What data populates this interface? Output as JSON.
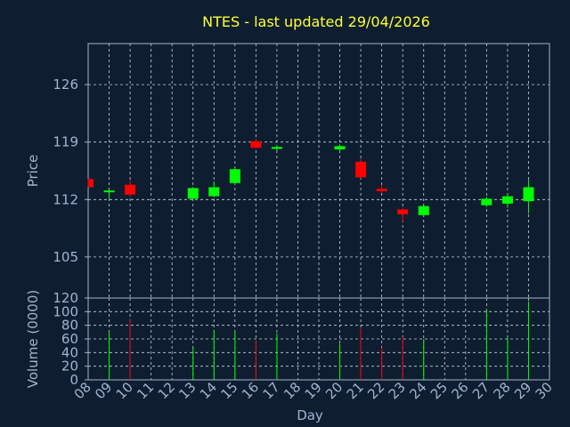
{
  "chart_data": {
    "type": "candlestick",
    "title": "NTES - last updated 29/04/2026",
    "xlabel": "Day",
    "price_panel": {
      "ylabel": "Price",
      "yticks": [
        105,
        112,
        119,
        126
      ],
      "ylim": [
        100,
        131
      ],
      "grid": true
    },
    "volume_panel": {
      "ylabel": "Volume (0000)",
      "yticks": [
        0,
        20,
        40,
        60,
        80,
        100,
        120
      ],
      "ylim": [
        0,
        120
      ],
      "grid": true
    },
    "x_tick_labels": [
      "08",
      "09",
      "10",
      "11",
      "12",
      "13",
      "14",
      "15",
      "16",
      "17",
      "18",
      "19",
      "20",
      "21",
      "22",
      "23",
      "24",
      "25",
      "26",
      "27",
      "28",
      "29",
      "30"
    ],
    "up_color": "#00ff00",
    "down_color": "#ff0000",
    "candles": [
      {
        "day": "08",
        "open": 114.5,
        "close": 113.5,
        "high": 114.5,
        "low": 113.5,
        "volume": 0
      },
      {
        "day": "09",
        "open": 112.9,
        "close": 113.1,
        "high": 113.2,
        "low": 112.0,
        "volume": 70
      },
      {
        "day": "10",
        "open": 113.8,
        "close": 112.6,
        "high": 114.4,
        "low": 112.4,
        "volume": 88
      },
      {
        "day": "13",
        "open": 112.1,
        "close": 113.4,
        "high": 113.5,
        "low": 112.0,
        "volume": 48
      },
      {
        "day": "14",
        "open": 112.4,
        "close": 113.5,
        "high": 114.2,
        "low": 112.3,
        "volume": 73
      },
      {
        "day": "15",
        "open": 114.0,
        "close": 115.7,
        "high": 115.9,
        "low": 113.9,
        "volume": 70
      },
      {
        "day": "16",
        "open": 119.1,
        "close": 118.3,
        "high": 119.4,
        "low": 118.2,
        "volume": 57
      },
      {
        "day": "17",
        "open": 118.2,
        "close": 118.4,
        "high": 118.6,
        "low": 118.0,
        "volume": 68
      },
      {
        "day": "20",
        "open": 118.1,
        "close": 118.5,
        "high": 118.7,
        "low": 117.9,
        "volume": 53
      },
      {
        "day": "21",
        "open": 116.6,
        "close": 114.7,
        "high": 116.9,
        "low": 114.6,
        "volume": 76
      },
      {
        "day": "22",
        "open": 113.3,
        "close": 113.0,
        "high": 113.8,
        "low": 112.8,
        "volume": 47
      },
      {
        "day": "23",
        "open": 110.8,
        "close": 110.2,
        "high": 111.0,
        "low": 109.3,
        "volume": 63
      },
      {
        "day": "24",
        "open": 110.1,
        "close": 111.2,
        "high": 111.3,
        "low": 110.0,
        "volume": 60
      },
      {
        "day": "27",
        "open": 111.3,
        "close": 112.1,
        "high": 112.3,
        "low": 111.1,
        "volume": 104
      },
      {
        "day": "28",
        "open": 111.5,
        "close": 112.4,
        "high": 112.6,
        "low": 111.0,
        "volume": 62
      },
      {
        "day": "29",
        "open": 111.8,
        "close": 113.5,
        "high": 114.4,
        "low": 110.3,
        "volume": 115
      }
    ]
  }
}
